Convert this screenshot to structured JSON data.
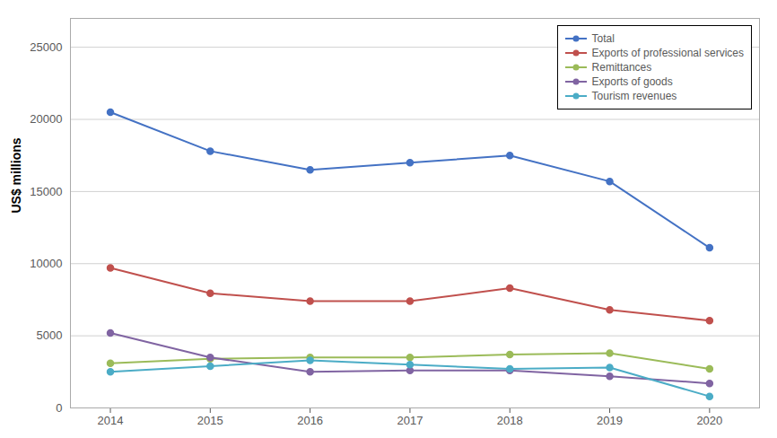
{
  "chart_data": {
    "type": "line",
    "ylabel": "US$ millions",
    "x": [
      2014,
      2015,
      2016,
      2017,
      2018,
      2019,
      2020
    ],
    "xlim": [
      2013.6,
      2020.5
    ],
    "xticks": [
      2014,
      2015,
      2016,
      2017,
      2018,
      2019,
      2020
    ],
    "ylim": [
      0,
      27000
    ],
    "yticks": [
      0,
      5000,
      10000,
      15000,
      20000,
      25000
    ],
    "grid": "y",
    "legend": "upper right",
    "series": [
      {
        "name": "Total",
        "color": "#4472c4",
        "marker": "circle",
        "values": [
          20500,
          17800,
          16500,
          17000,
          17500,
          15700,
          11100
        ]
      },
      {
        "name": "Exports of professional services",
        "color": "#c0504d",
        "marker": "circle",
        "values": [
          9700,
          7950,
          7400,
          7400,
          8300,
          6800,
          6050
        ]
      },
      {
        "name": "Remittances",
        "color": "#9bbb59",
        "marker": "circle",
        "values": [
          3100,
          3400,
          3500,
          3500,
          3700,
          3800,
          2700
        ]
      },
      {
        "name": "Exports of goods",
        "color": "#8064a2",
        "marker": "circle",
        "values": [
          5200,
          3500,
          2500,
          2600,
          2600,
          2200,
          1700
        ]
      },
      {
        "name": "Tourism revenues",
        "color": "#4bacc6",
        "marker": "circle",
        "values": [
          2500,
          2900,
          3300,
          3000,
          2700,
          2800,
          800
        ]
      }
    ]
  }
}
